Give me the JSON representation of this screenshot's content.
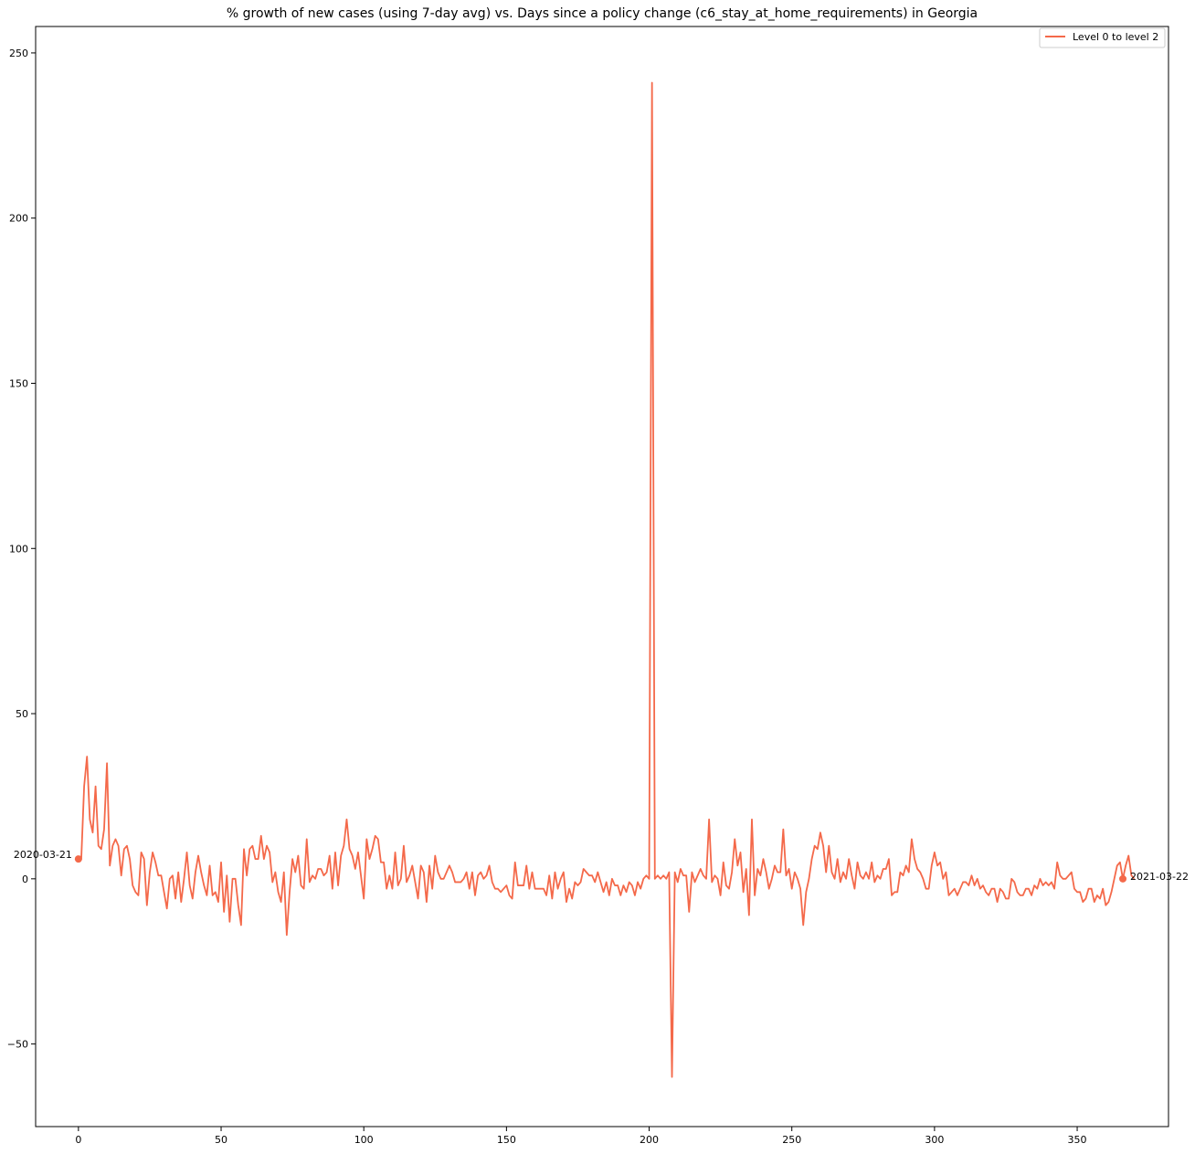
{
  "chart_data": {
    "type": "line",
    "title": "% growth of new cases (using 7-day avg) vs. Days since a policy change (c6_stay_at_home_requirements) in Georgia",
    "xlabel": "",
    "ylabel": "",
    "xlim": [
      -15,
      382
    ],
    "ylim": [
      -75,
      258
    ],
    "x_ticks": [
      0,
      50,
      100,
      150,
      200,
      250,
      300,
      350
    ],
    "y_ticks": [
      -50,
      0,
      50,
      100,
      150,
      200,
      250
    ],
    "grid": false,
    "legend_position": "top-right",
    "series": [
      {
        "name": "Level 0 to level 2",
        "color": "#f4694a",
        "x_start": 0,
        "values": [
          6,
          6,
          28,
          37,
          18,
          14,
          28,
          10,
          9,
          15,
          35,
          4,
          10,
          12,
          10,
          1,
          9,
          10,
          6,
          -2,
          -4,
          -5,
          8,
          6,
          -8,
          2,
          8,
          5,
          1,
          1,
          -4,
          -9,
          0,
          1,
          -6,
          2,
          -7,
          0,
          8,
          -2,
          -6,
          2,
          7,
          2,
          -2,
          -5,
          4,
          -5,
          -4,
          -7,
          5,
          -10,
          1,
          -13,
          0,
          0,
          -8,
          -14,
          9,
          1,
          9,
          10,
          6,
          6,
          13,
          6,
          10,
          8,
          -1,
          2,
          -4,
          -7,
          2,
          -17,
          -4,
          6,
          2,
          7,
          -2,
          -3,
          12,
          -1,
          1,
          0,
          3,
          3,
          1,
          2,
          7,
          -3,
          8,
          -2,
          7,
          10,
          18,
          9,
          7,
          3,
          8,
          1,
          -6,
          12,
          6,
          9,
          13,
          12,
          5,
          5,
          -3,
          1,
          -3,
          8,
          -2,
          0,
          10,
          -1,
          1,
          4,
          -1,
          -6,
          4,
          2,
          -7,
          4,
          -3,
          7,
          2,
          0,
          0,
          2,
          4,
          2,
          -1,
          -1,
          -1,
          0,
          2,
          -3,
          2,
          -5,
          1,
          2,
          0,
          1,
          4,
          -1,
          -3,
          -3,
          -4,
          -3,
          -2,
          -5,
          -6,
          5,
          -2,
          -2,
          -2,
          4,
          -3,
          2,
          -3,
          -3,
          -3,
          -3,
          -5,
          1,
          -6,
          2,
          -3,
          0,
          2,
          -7,
          -3,
          -6,
          -1,
          -2,
          -1,
          3,
          2,
          1,
          1,
          -1,
          2,
          -1,
          -4,
          -1,
          -5,
          0,
          -2,
          -2,
          -5,
          -2,
          -4,
          -1,
          -2,
          -5,
          -1,
          -3,
          0,
          1,
          0,
          241,
          0,
          1,
          0,
          1,
          0,
          2,
          -60,
          2,
          -1,
          3,
          1,
          1,
          -10,
          2,
          -1,
          1,
          3,
          1,
          0,
          18,
          -1,
          1,
          0,
          -5,
          5,
          -2,
          -3,
          2,
          12,
          4,
          8,
          -4,
          3,
          -11,
          18,
          -5,
          3,
          1,
          6,
          2,
          -3,
          0,
          4,
          2,
          2,
          15,
          1,
          3,
          -3,
          2,
          0,
          -3,
          -14,
          -4,
          0,
          6,
          10,
          9,
          14,
          10,
          2,
          10,
          2,
          0,
          6,
          -1,
          2,
          0,
          6,
          1,
          -3,
          5,
          1,
          0,
          2,
          0,
          5,
          -1,
          1,
          0,
          3,
          3,
          6,
          -5,
          -4,
          -4,
          2,
          1,
          4,
          2,
          12,
          6,
          3,
          2,
          0,
          -3,
          -3,
          4,
          8,
          4,
          5,
          0,
          2,
          -5,
          -4,
          -3,
          -5,
          -3,
          -1,
          -1,
          -2,
          1,
          -2,
          0,
          -3,
          -2,
          -4,
          -5,
          -3,
          -3,
          -7,
          -3,
          -4,
          -6,
          -6,
          0,
          -1,
          -4,
          -5,
          -5,
          -3,
          -3,
          -5,
          -2,
          -3,
          0,
          -2,
          -1,
          -2,
          -1,
          -3,
          5,
          1,
          0,
          0,
          1,
          2,
          -3,
          -4,
          -4,
          -7,
          -6,
          -3,
          -3,
          -7,
          -5,
          -6,
          -3,
          -8,
          -7,
          -4,
          0,
          4,
          5,
          0,
          4,
          7,
          1,
          0
        ]
      }
    ],
    "annotations": [
      {
        "x": 0,
        "y": 6,
        "text": "2020-03-21",
        "side": "left"
      },
      {
        "x": 366,
        "y": 0,
        "text": "2021-03-22",
        "side": "right"
      }
    ]
  }
}
